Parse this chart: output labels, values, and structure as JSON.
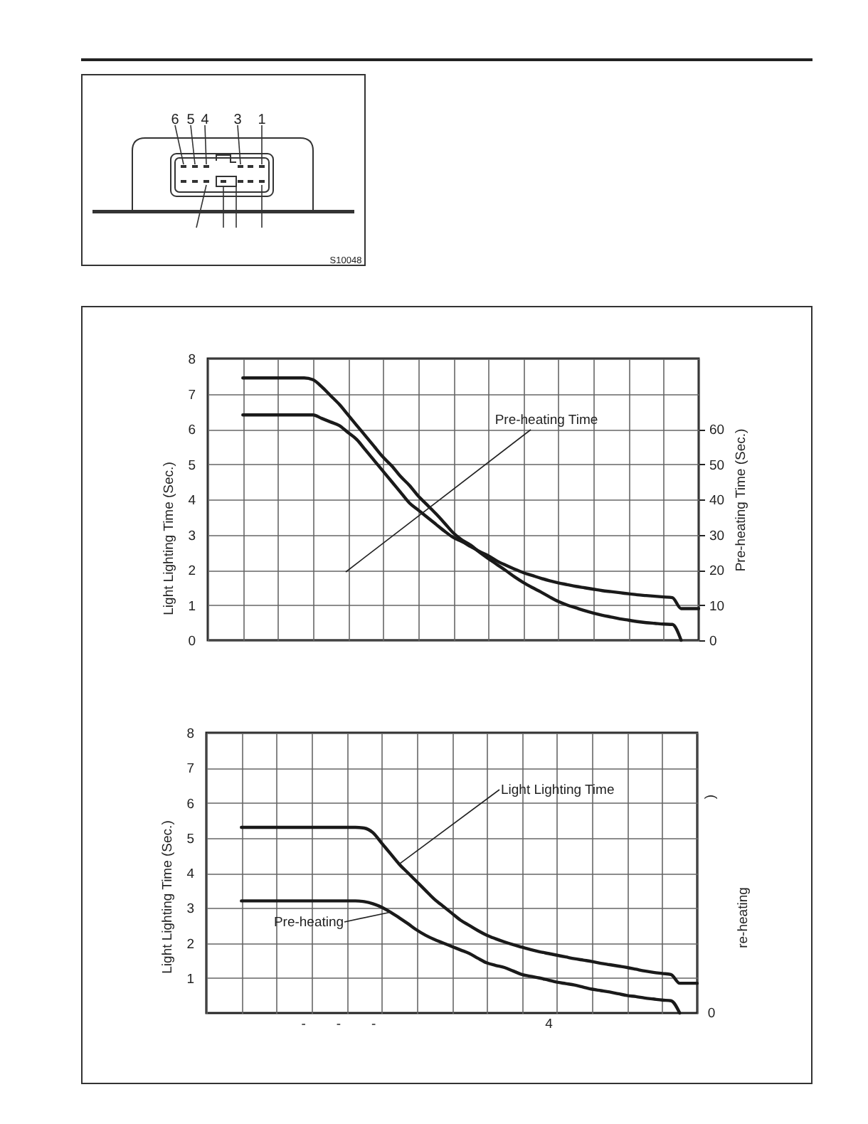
{
  "chart_data": [
    {
      "type": "other",
      "annotations": [
        "6",
        "5",
        "4",
        "3",
        "1",
        "S10048"
      ]
    },
    {
      "type": "line",
      "ylabel": "Light Lighting Time (Sec.)",
      "y2label": "Pre-heating Time (Sec.)",
      "grid": true,
      "categories": [
        null,
        null,
        null,
        null,
        null,
        null,
        null,
        null,
        null,
        null,
        null,
        null,
        null,
        null,
        null,
        null,
        null,
        null,
        null,
        null,
        null,
        null,
        null,
        null,
        null,
        null,
        null,
        null,
        null,
        null,
        null,
        null,
        null,
        null,
        null,
        null,
        null,
        null,
        null,
        null,
        null,
        null,
        null,
        null,
        null,
        null,
        null,
        null,
        null,
        null,
        null,
        null,
        null,
        null,
        null,
        null,
        null
      ],
      "ylim": [
        0,
        8
      ],
      "yticks": [
        0,
        1,
        2,
        3,
        4,
        5,
        6,
        7,
        8
      ],
      "y2lim": [
        0,
        80
      ],
      "y2ticks": [
        0,
        10,
        20,
        30,
        40,
        50,
        60
      ],
      "series": [
        {
          "color": "#1a1a1a",
          "values": [
            null,
            null,
            null,
            null,
            7.45,
            7.45,
            7.45,
            7.45,
            7.45,
            7.45,
            7.45,
            7.45,
            7.4,
            7.2,
            6.95,
            6.7,
            6.4,
            6.1,
            5.8,
            5.5,
            5.2,
            4.95,
            4.65,
            4.4,
            4.1,
            3.85,
            3.6,
            3.33,
            3.05,
            2.85,
            2.7,
            2.5,
            2.32,
            2.15,
            1.98,
            1.8,
            1.64,
            1.5,
            1.37,
            1.23,
            1.1,
            1.0,
            0.92,
            0.84,
            0.77,
            0.71,
            0.66,
            0.61,
            0.57,
            0.53,
            0.5,
            0.48,
            0.46,
            0.45,
            0,
            null,
            null
          ]
        },
        {
          "name": "Pre-heating Time",
          "color": "#1a1a1a",
          "axis": "y2",
          "values": [
            null,
            null,
            null,
            null,
            64,
            64,
            64,
            64,
            64,
            64,
            64,
            64,
            64,
            63,
            62,
            61,
            59,
            57,
            54,
            51,
            48,
            45,
            42,
            39,
            37,
            35,
            33,
            31,
            29.2,
            28,
            26.6,
            25.2,
            24,
            22.5,
            21.3,
            20.2,
            19.2,
            18.4,
            17.6,
            16.9,
            16.3,
            15.8,
            15.3,
            14.9,
            14.5,
            14.1,
            13.8,
            13.5,
            13.2,
            12.9,
            12.7,
            12.5,
            12.3,
            12.1,
            9,
            9,
            9
          ]
        }
      ]
    },
    {
      "type": "line",
      "ylabel": "Light Lighting Time (Sec.)",
      "y2label": "re-heating",
      "annotations": [
        ")",
        "0"
      ],
      "grid": true,
      "categories": [
        null,
        null,
        null,
        null,
        null,
        null,
        null,
        null,
        null,
        null,
        null,
        "-",
        null,
        null,
        null,
        "-",
        null,
        null,
        null,
        "-",
        null,
        null,
        null,
        null,
        null,
        null,
        null,
        null,
        null,
        null,
        null,
        null,
        null,
        null,
        null,
        null,
        null,
        null,
        null,
        "4",
        null,
        null,
        null,
        null,
        null,
        null,
        null,
        null,
        null,
        null,
        null,
        null,
        null,
        null,
        null,
        null,
        null
      ],
      "ylim": [
        0,
        8
      ],
      "yticks": [
        1,
        2,
        3,
        4,
        5,
        6,
        7,
        8
      ],
      "series": [
        {
          "name": "Light Lighting Time",
          "color": "#1a1a1a",
          "values": [
            null,
            null,
            null,
            null,
            5.3,
            5.3,
            5.3,
            5.3,
            5.3,
            5.3,
            5.3,
            5.3,
            5.3,
            5.3,
            5.3,
            5.3,
            5.3,
            5.3,
            5.28,
            5.15,
            4.85,
            4.55,
            4.25,
            4.0,
            3.75,
            3.5,
            3.25,
            3.05,
            2.85,
            2.65,
            2.5,
            2.35,
            2.22,
            2.12,
            2.03,
            1.95,
            1.88,
            1.81,
            1.75,
            1.7,
            1.65,
            1.6,
            1.55,
            1.51,
            1.47,
            1.42,
            1.38,
            1.34,
            1.3,
            1.25,
            1.2,
            1.16,
            1.13,
            1.1,
            0.85,
            0.85,
            0.85
          ]
        },
        {
          "name": "Pre-heating",
          "color": "#1a1a1a",
          "values": [
            null,
            null,
            null,
            null,
            3.2,
            3.2,
            3.2,
            3.2,
            3.2,
            3.2,
            3.2,
            3.2,
            3.2,
            3.2,
            3.2,
            3.2,
            3.2,
            3.2,
            3.18,
            3.12,
            3.02,
            2.88,
            2.72,
            2.55,
            2.37,
            2.22,
            2.1,
            2.0,
            1.9,
            1.8,
            1.7,
            1.56,
            1.43,
            1.36,
            1.3,
            1.2,
            1.1,
            1.05,
            1.0,
            0.94,
            0.88,
            0.84,
            0.8,
            0.74,
            0.68,
            0.64,
            0.6,
            0.55,
            0.5,
            0.47,
            0.43,
            0.4,
            0.37,
            0.35,
            0,
            null,
            null
          ]
        }
      ]
    }
  ]
}
